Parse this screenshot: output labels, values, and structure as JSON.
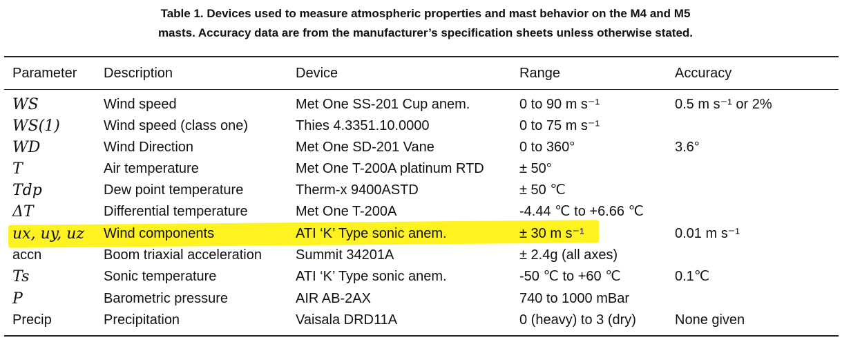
{
  "caption": {
    "line1": "Table 1. Devices used to measure atmospheric properties and mast behavior on the M4 and M5",
    "line2": "masts. Accuracy data are from the manufacturer’s specification sheets unless otherwise stated."
  },
  "columns": [
    "Parameter",
    "Description",
    "Device",
    "Range",
    "Accuracy"
  ],
  "rows": [
    [
      "WS",
      "Wind speed",
      "Met One SS-201 Cup anem.",
      "0 to 90 m s⁻¹",
      "0.5 m s⁻¹ or 2%"
    ],
    [
      "WS(1)",
      "Wind speed (class one)",
      "Thies 4.3351.10.0000",
      "0 to 75 m s⁻¹",
      ""
    ],
    [
      "WD",
      "Wind Direction",
      "Met One SD-201 Vane",
      "0 to 360°",
      "3.6°"
    ],
    [
      "T",
      "Air temperature",
      "Met One T-200A platinum RTD",
      "± 50°",
      ""
    ],
    [
      "Tdp",
      "Dew point temperature",
      "Therm-x 9400ASTD",
      "± 50 ℃",
      ""
    ],
    [
      "ΔT",
      "Differential temperature",
      "Met One T-200A",
      "-4.44 ℃ to +6.66 ℃",
      ""
    ],
    [
      "ux, uy, uz",
      "Wind components",
      "ATI ‘K’ Type sonic anem.",
      "± 30 m s⁻¹",
      "0.01 m s⁻¹"
    ],
    [
      "accn",
      "Boom triaxial acceleration",
      "Summit 34201A",
      "± 2.4g (all axes)",
      ""
    ],
    [
      "Ts",
      "Sonic temperature",
      "ATI ‘K’ Type sonic anem.",
      "-50 ℃ to +60 ℃",
      "0.1℃"
    ],
    [
      "P",
      "Barometric pressure",
      "AIR AB-2AX",
      "740 to 1000 mBar",
      ""
    ],
    [
      "Precip",
      "Precipitation",
      "Vaisala DRD11A",
      "0 (heavy) to 3 (dry)",
      "None given"
    ]
  ],
  "highlighted_row": 6,
  "highlight_color": "#fef320"
}
